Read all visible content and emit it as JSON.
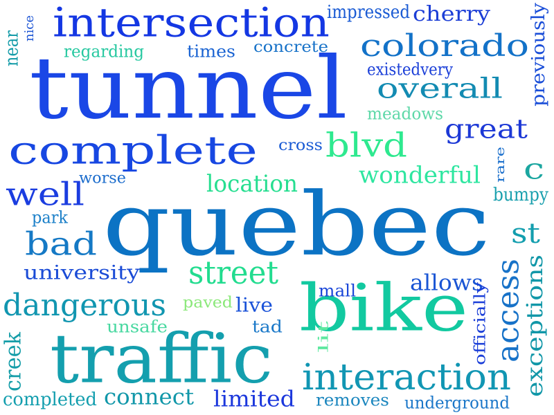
{
  "words": [
    {
      "text": "tunnel",
      "color": "#1a47e6",
      "rotate": false
    },
    {
      "text": "quebec",
      "color": "#0c73c4",
      "rotate": false
    },
    {
      "text": "traffic",
      "color": "#149fae",
      "rotate": false
    },
    {
      "text": "bike",
      "color": "#12c9a0",
      "rotate": false
    },
    {
      "text": "intersection",
      "color": "#1437e3",
      "rotate": false
    },
    {
      "text": "complete",
      "color": "#1747e2",
      "rotate": false
    },
    {
      "text": "colorado",
      "color": "#1372c8",
      "rotate": false
    },
    {
      "text": "interaction",
      "color": "#1196b3",
      "rotate": false
    },
    {
      "text": "overall",
      "color": "#138bb2",
      "rotate": false
    },
    {
      "text": "well",
      "color": "#1b3de0",
      "rotate": false
    },
    {
      "text": "great",
      "color": "#1c38d6",
      "rotate": false
    },
    {
      "text": "blvd",
      "color": "#2ee98f",
      "rotate": false
    },
    {
      "text": "bad",
      "color": "#1579c5",
      "rotate": false
    },
    {
      "text": "dangerous",
      "color": "#1196b0",
      "rotate": false
    },
    {
      "text": "street",
      "color": "#22dc8f",
      "rotate": false
    },
    {
      "text": "university",
      "color": "#1a4bd6",
      "rotate": false
    },
    {
      "text": "access",
      "color": "#1772c8",
      "rotate": true
    },
    {
      "text": "exceptions",
      "color": "#1197a8",
      "rotate": true
    },
    {
      "text": "location",
      "color": "#26de90",
      "rotate": false
    },
    {
      "text": "wonderful",
      "color": "#2ee6a0",
      "rotate": false
    },
    {
      "text": "st",
      "color": "#139eae",
      "rotate": false
    },
    {
      "text": "c",
      "color": "#1ba6a0",
      "rotate": false
    },
    {
      "text": "allows",
      "color": "#1a55d4",
      "rotate": false
    },
    {
      "text": "limited",
      "color": "#1b37dc",
      "rotate": false
    },
    {
      "text": "connect",
      "color": "#1197a9",
      "rotate": false
    },
    {
      "text": "creek",
      "color": "#149da8",
      "rotate": true
    },
    {
      "text": "live",
      "color": "#1a52d8",
      "rotate": false
    },
    {
      "text": "cherry",
      "color": "#1c3ed6",
      "rotate": false
    },
    {
      "text": "previously",
      "color": "#1a4ed8",
      "rotate": true
    },
    {
      "text": "near",
      "color": "#139ba8",
      "rotate": true
    },
    {
      "text": "nice",
      "color": "#1a53d4",
      "rotate": true
    },
    {
      "text": "regarding",
      "color": "#26c8a0",
      "rotate": false
    },
    {
      "text": "times",
      "color": "#1a63d2",
      "rotate": false
    },
    {
      "text": "concrete",
      "color": "#1772c8",
      "rotate": false
    },
    {
      "text": "impressed",
      "color": "#1a5bd4",
      "rotate": false
    },
    {
      "text": "existedvery",
      "color": "#1b3fd8",
      "rotate": false
    },
    {
      "text": "meadows",
      "color": "#5ed8a8",
      "rotate": false
    },
    {
      "text": "cross",
      "color": "#1a5bd4",
      "rotate": false
    },
    {
      "text": "worse",
      "color": "#1b6ccc",
      "rotate": false
    },
    {
      "text": "park",
      "color": "#1a7fc8",
      "rotate": false
    },
    {
      "text": "rare",
      "color": "#1a6fcc",
      "rotate": true
    },
    {
      "text": "bumpy",
      "color": "#1aa0ae",
      "rotate": false
    },
    {
      "text": "mall",
      "color": "#1a46d8",
      "rotate": false
    },
    {
      "text": "paved",
      "color": "#8be87a",
      "rotate": false
    },
    {
      "text": "unsafe",
      "color": "#48d8a0",
      "rotate": false
    },
    {
      "text": "tad",
      "color": "#1a78c8",
      "rotate": false
    },
    {
      "text": "lit",
      "color": "#5ee8a0",
      "rotate": true
    },
    {
      "text": "officially",
      "color": "#1a3ed8",
      "rotate": true
    },
    {
      "text": "completed",
      "color": "#139eae",
      "rotate": false
    },
    {
      "text": "removes",
      "color": "#1b86be",
      "rotate": false
    },
    {
      "text": "underground",
      "color": "#1a76c8",
      "rotate": false
    }
  ]
}
